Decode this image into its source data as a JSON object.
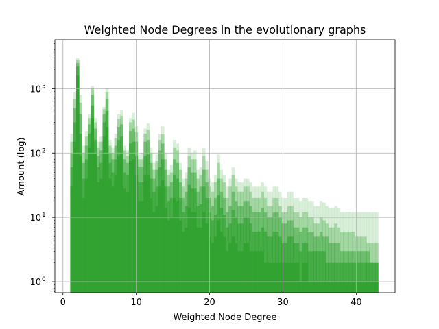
{
  "chart_data": {
    "type": "histogram",
    "title": "Weighted Node Degrees in the evolutionary graphs",
    "xlabel": "Weighted Node Degree",
    "ylabel": "Amount (log)",
    "xlim": [
      -1.1,
      45.3
    ],
    "ylim_log10": [
      -0.17,
      3.76
    ],
    "yscale": "log",
    "grid": true,
    "bar_color": "#2ca02c",
    "x_ticks": [
      0,
      10,
      20,
      30,
      40
    ],
    "y_ticks": [
      {
        "base": "10",
        "exp": "0",
        "value": 1
      },
      {
        "base": "10",
        "exp": "1",
        "value": 10
      },
      {
        "base": "10",
        "exp": "2",
        "value": 100
      },
      {
        "base": "10",
        "exp": "3",
        "value": 1000
      }
    ],
    "bin_start": 1.0,
    "bin_width": 0.4,
    "series": [
      {
        "opacity": 0.18,
        "counts": [
          200,
          900,
          3000,
          800,
          130,
          220,
          400,
          1100,
          350,
          150,
          180,
          520,
          1000,
          160,
          120,
          200,
          400,
          470,
          130,
          110,
          350,
          420,
          260,
          95,
          100,
          240,
          290,
          120,
          70,
          95,
          200,
          260,
          100,
          55,
          65,
          160,
          140,
          70,
          40,
          50,
          120,
          100,
          110,
          55,
          60,
          120,
          75,
          40,
          35,
          45,
          95,
          55,
          45,
          30,
          40,
          60,
          40,
          35,
          35,
          40,
          40,
          35,
          30,
          30,
          30,
          35,
          30,
          25,
          25,
          30,
          30,
          25,
          20,
          20,
          25,
          25,
          20,
          20,
          18,
          20,
          20,
          18,
          18,
          15,
          15,
          18,
          17,
          15,
          14,
          14,
          15,
          14,
          12,
          12,
          12,
          12,
          12,
          12,
          12,
          12,
          12,
          12,
          12,
          12,
          12
        ]
      },
      {
        "opacity": 0.3,
        "counts": [
          150,
          700,
          2800,
          600,
          100,
          180,
          350,
          1000,
          300,
          120,
          150,
          480,
          900,
          130,
          100,
          170,
          340,
          380,
          110,
          90,
          300,
          330,
          210,
          80,
          80,
          200,
          230,
          100,
          55,
          75,
          160,
          200,
          80,
          45,
          50,
          120,
          110,
          55,
          30,
          40,
          90,
          80,
          80,
          40,
          45,
          90,
          55,
          30,
          25,
          35,
          70,
          40,
          35,
          20,
          30,
          45,
          30,
          25,
          25,
          30,
          30,
          25,
          20,
          20,
          20,
          25,
          20,
          15,
          15,
          20,
          20,
          15,
          12,
          12,
          15,
          15,
          12,
          12,
          10,
          12,
          12,
          10,
          10,
          8,
          8,
          10,
          9,
          8,
          7,
          7,
          8,
          7,
          6,
          6,
          6,
          6,
          6,
          5,
          5,
          5,
          5,
          4,
          4,
          4,
          4
        ]
      },
      {
        "opacity": 0.45,
        "counts": [
          100,
          500,
          2500,
          400,
          70,
          130,
          280,
          800,
          240,
          90,
          110,
          400,
          700,
          100,
          80,
          130,
          250,
          280,
          80,
          70,
          220,
          240,
          150,
          60,
          60,
          150,
          160,
          70,
          40,
          55,
          110,
          140,
          55,
          30,
          35,
          80,
          70,
          35,
          20,
          25,
          60,
          50,
          50,
          25,
          30,
          55,
          35,
          20,
          15,
          20,
          40,
          25,
          20,
          12,
          15,
          25,
          18,
          15,
          15,
          18,
          18,
          15,
          12,
          12,
          12,
          14,
          12,
          10,
          10,
          12,
          12,
          10,
          8,
          8,
          9,
          9,
          7,
          7,
          6,
          7,
          7,
          6,
          6,
          5,
          5,
          6,
          5,
          5,
          4,
          4,
          4,
          4,
          3,
          3,
          3,
          3,
          3,
          3,
          3,
          3,
          3,
          3,
          2,
          2,
          2
        ]
      },
      {
        "opacity": 0.6,
        "counts": [
          60,
          300,
          2200,
          200,
          40,
          80,
          200,
          550,
          160,
          60,
          70,
          300,
          450,
          70,
          50,
          80,
          160,
          180,
          50,
          45,
          140,
          150,
          90,
          35,
          35,
          90,
          95,
          40,
          25,
          30,
          60,
          80,
          30,
          18,
          20,
          45,
          40,
          20,
          12,
          15,
          32,
          28,
          28,
          15,
          16,
          30,
          20,
          12,
          9,
          11,
          22,
          14,
          11,
          7,
          8,
          13,
          10,
          8,
          8,
          10,
          10,
          8,
          6,
          6,
          6,
          7,
          6,
          5,
          5,
          6,
          6,
          5,
          4,
          4,
          5,
          5,
          4,
          4,
          3,
          4,
          4,
          3,
          3,
          3,
          3,
          3,
          3,
          2,
          2,
          2,
          2,
          2,
          2,
          2,
          2,
          2,
          2,
          2,
          2,
          2,
          2,
          2,
          2,
          2,
          2
        ]
      },
      {
        "opacity": 0.75,
        "counts": [
          30,
          150,
          1600,
          90,
          20,
          40,
          120,
          350,
          100,
          35,
          40,
          180,
          250,
          40,
          30,
          45,
          90,
          100,
          28,
          25,
          75,
          80,
          45,
          18,
          18,
          45,
          45,
          20,
          12,
          15,
          30,
          38,
          14,
          9,
          10,
          20,
          18,
          9,
          6,
          7,
          14,
          12,
          12,
          7,
          7,
          12,
          8,
          5,
          4,
          5,
          9,
          6,
          5,
          3,
          4,
          5,
          4,
          3,
          3,
          4,
          4,
          3,
          3,
          3,
          3,
          3,
          2,
          2,
          2,
          2,
          2,
          2,
          2,
          2,
          2,
          2,
          2,
          2,
          1,
          2,
          2,
          1,
          1,
          1,
          1,
          1,
          1,
          1,
          1,
          1,
          1,
          1,
          1,
          1,
          1,
          1,
          1,
          1,
          1,
          1,
          1,
          1,
          1,
          1,
          1
        ]
      }
    ]
  }
}
